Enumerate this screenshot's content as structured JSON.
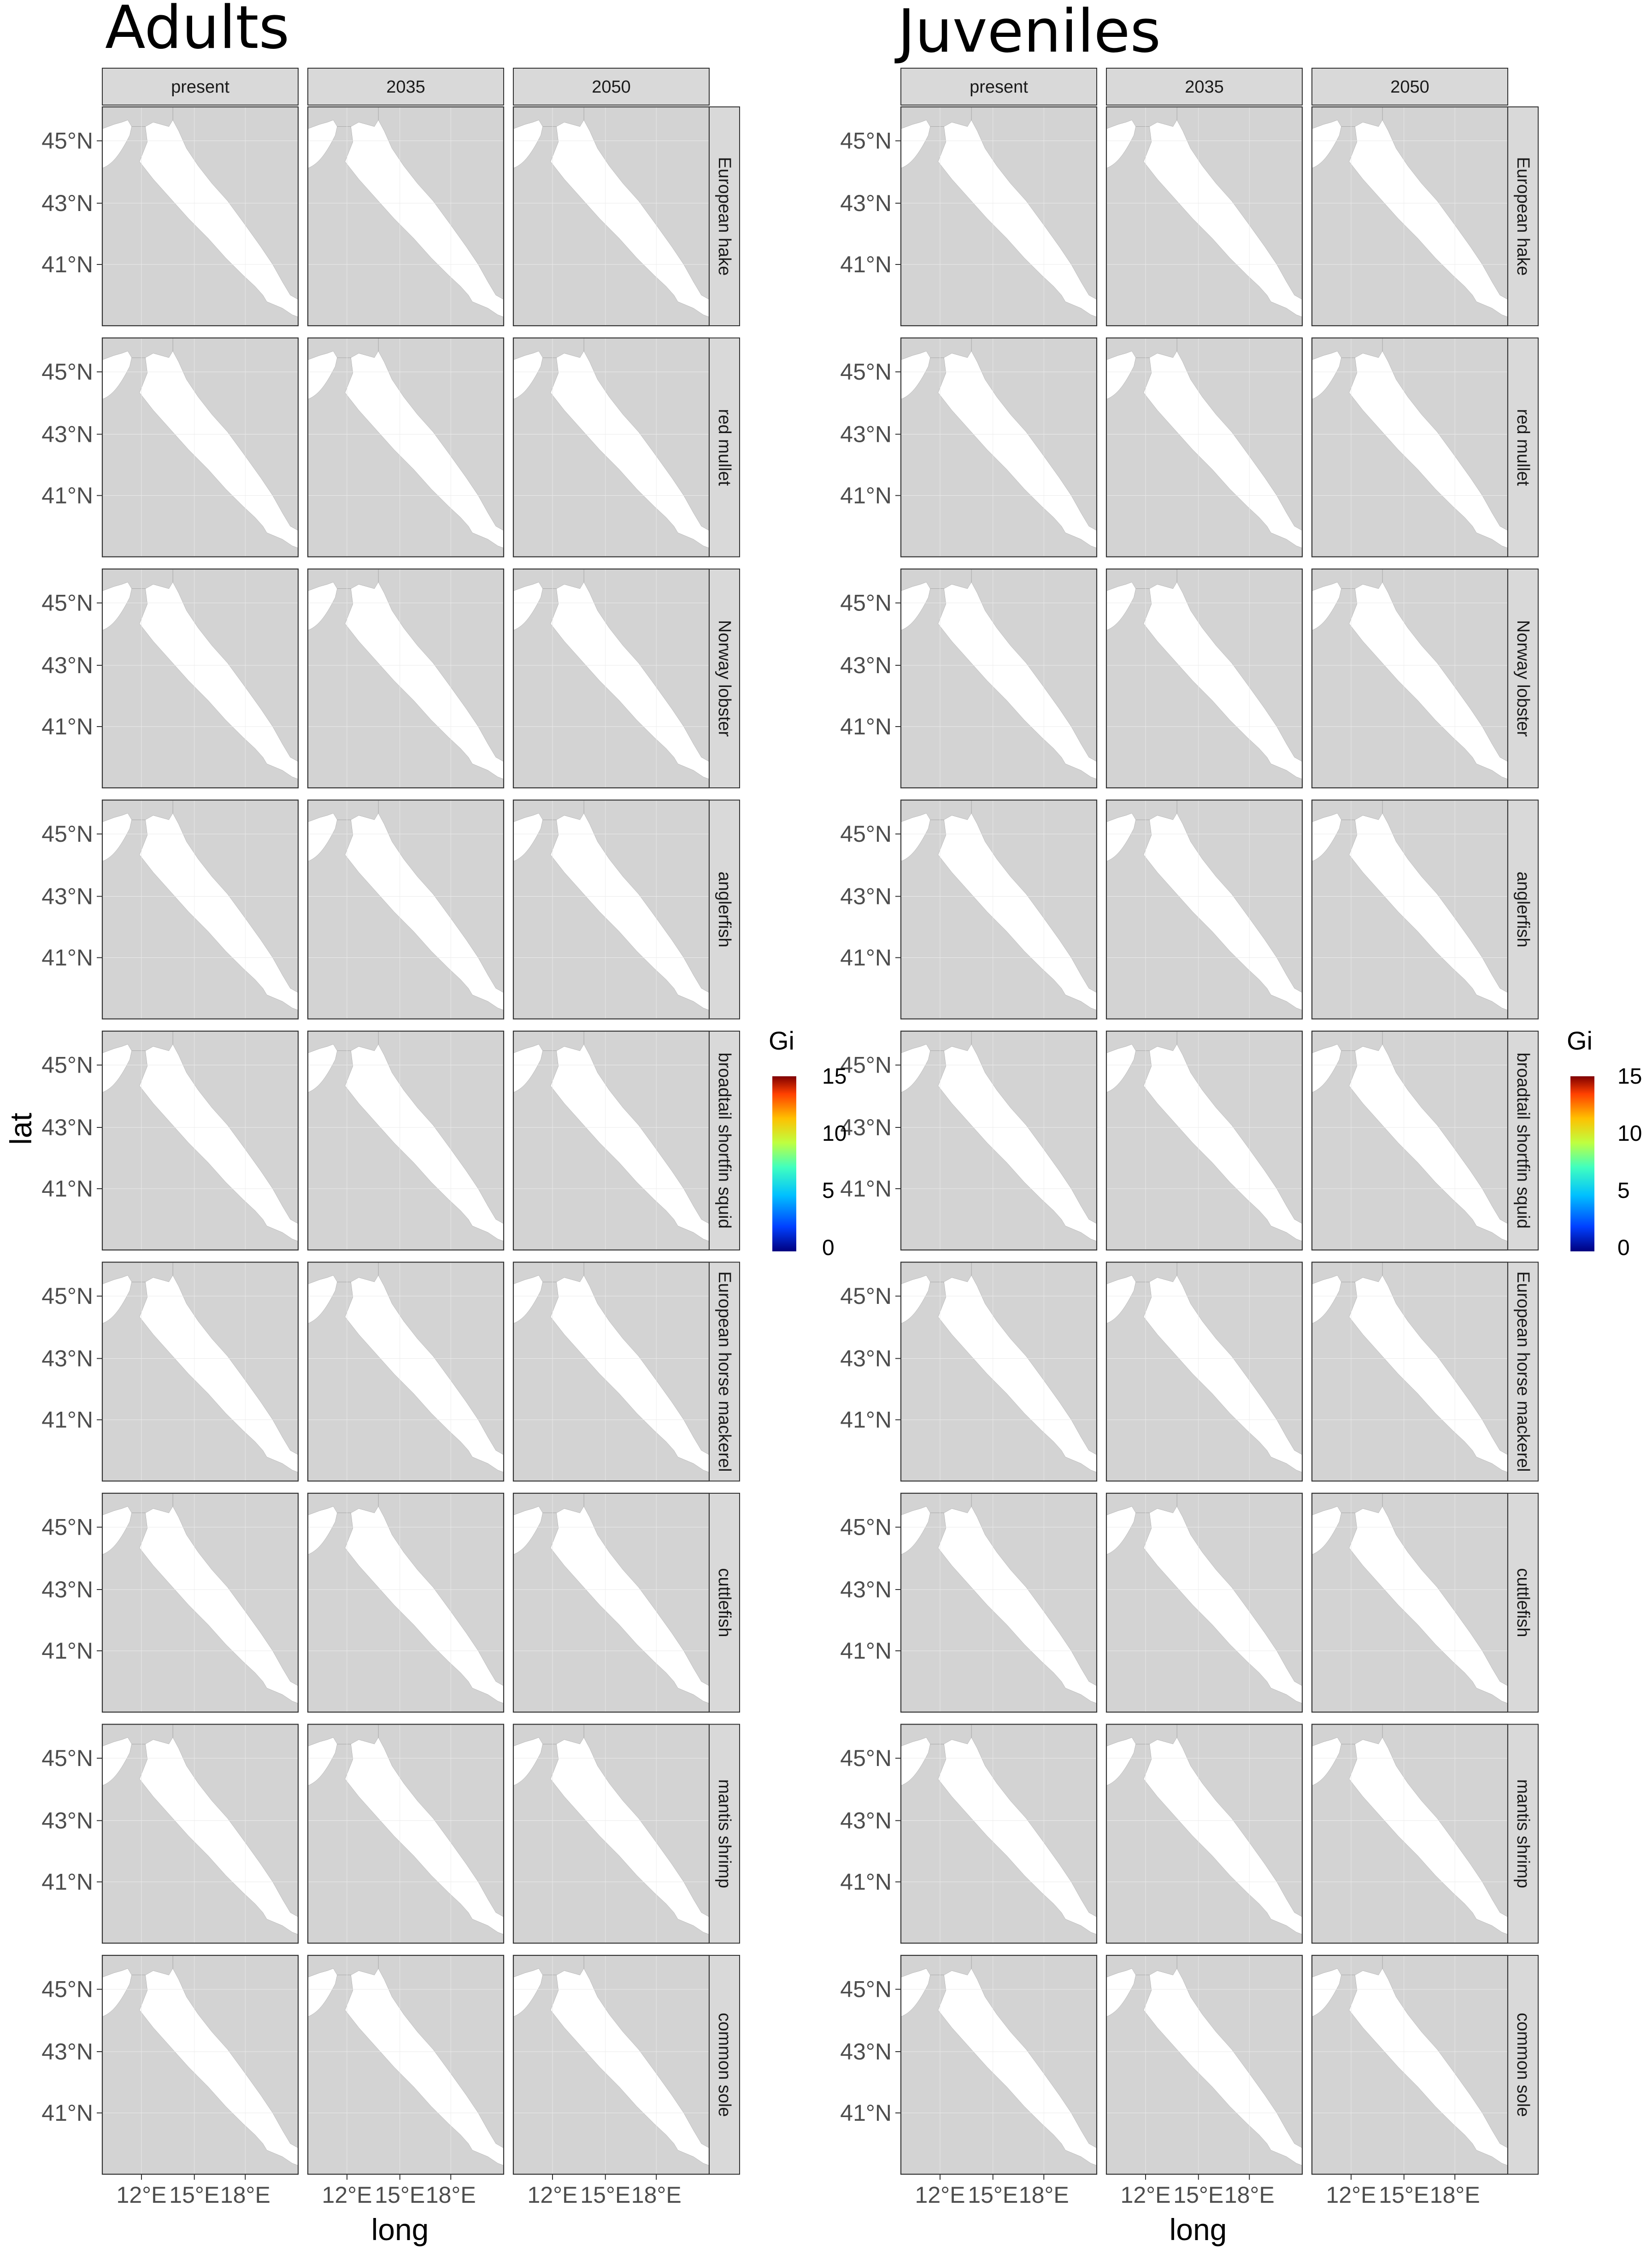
{
  "figure": {
    "groups": [
      {
        "title": "Adults"
      },
      {
        "title": "Juveniles"
      }
    ],
    "periods": [
      "present",
      "2035",
      "2050"
    ],
    "species": [
      "European hake",
      "red mullet",
      "Norway lobster",
      "anglerfish",
      "broadtail shortfin squid",
      "European horse mackerel",
      "cuttlefish",
      "mantis shrimp",
      "common sole"
    ],
    "lat_ticks": [
      "45°N",
      "43°N",
      "41°N"
    ],
    "long_ticks": [
      "12°E",
      "15°E",
      "18°E"
    ],
    "x_axis_label": "long",
    "y_axis_label": "lat",
    "legend": {
      "title": "Gi",
      "ticks": [
        "15",
        "10",
        "5",
        "0"
      ],
      "range": [
        0,
        15
      ],
      "colors": [
        "#00007f",
        "#0040ff",
        "#00c0ff",
        "#40ffbf",
        "#bfff40",
        "#ffc000",
        "#ff4000",
        "#7f0000"
      ]
    },
    "colors": {
      "land": "#d3d3d3",
      "sea": "#ffffff",
      "strip": "#d9d9d9",
      "panel_border": "#333333",
      "coast": "#4d4d4d"
    }
  }
}
